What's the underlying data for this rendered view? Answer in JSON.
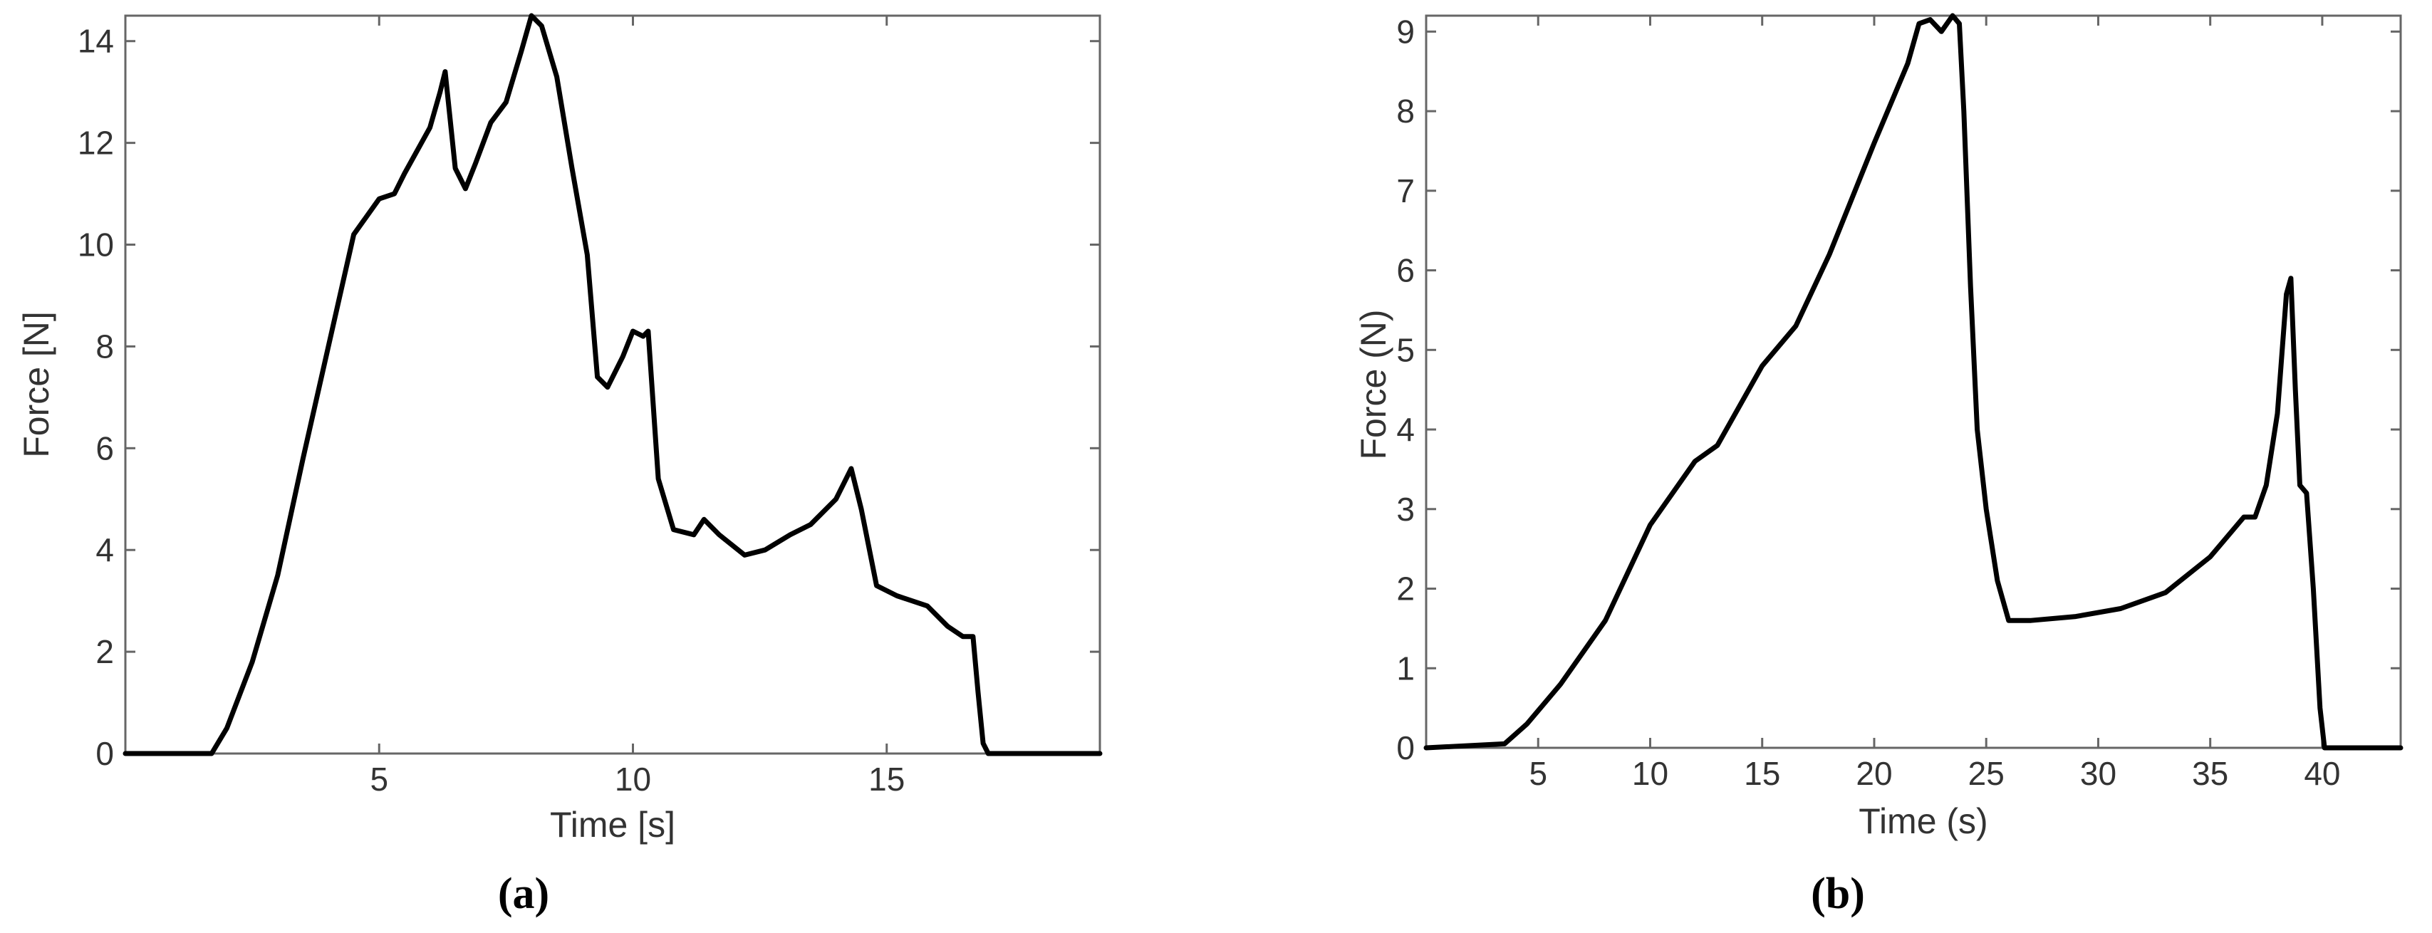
{
  "chart_data": [
    {
      "panel_label": "(a)",
      "type": "line",
      "xlabel": "Time [s]",
      "ylabel": "Force [N]",
      "xlim": [
        0,
        19.2
      ],
      "ylim": [
        0,
        14.5
      ],
      "xticks": [
        5,
        10,
        15
      ],
      "yticks": [
        0,
        2,
        4,
        6,
        8,
        10,
        12,
        14
      ],
      "grid": false,
      "series": [
        {
          "color": "#000000",
          "x": [
            0,
            1.7,
            2.0,
            2.5,
            3.0,
            3.5,
            4.0,
            4.5,
            5.0,
            5.3,
            5.5,
            6.0,
            6.2,
            6.3,
            6.5,
            6.7,
            6.9,
            7.2,
            7.5,
            7.8,
            8.0,
            8.2,
            8.5,
            8.8,
            9.1,
            9.3,
            9.5,
            9.8,
            10.0,
            10.2,
            10.3,
            10.5,
            10.8,
            11.2,
            11.4,
            11.7,
            12.2,
            12.6,
            13.1,
            13.5,
            14.0,
            14.3,
            14.5,
            14.8,
            15.2,
            15.8,
            16.2,
            16.5,
            16.7,
            16.8,
            16.9,
            17.0,
            19.2
          ],
          "values": [
            0,
            0,
            0.5,
            1.8,
            3.5,
            5.8,
            8.0,
            10.2,
            10.9,
            11.0,
            11.4,
            12.3,
            13.0,
            13.4,
            11.5,
            11.1,
            11.6,
            12.4,
            12.8,
            13.8,
            14.5,
            14.3,
            13.3,
            11.5,
            9.8,
            7.4,
            7.2,
            7.8,
            8.3,
            8.2,
            8.3,
            5.4,
            4.4,
            4.3,
            4.6,
            4.3,
            3.9,
            4.0,
            4.3,
            4.5,
            5.0,
            5.6,
            4.8,
            3.3,
            3.1,
            2.9,
            2.5,
            2.3,
            2.3,
            1.2,
            0.2,
            0,
            0
          ]
        }
      ]
    },
    {
      "panel_label": "(b)",
      "type": "line",
      "xlabel": "Time (s)",
      "ylabel": "Force (N)",
      "xlim": [
        0,
        43.5
      ],
      "ylim": [
        0,
        9.2
      ],
      "xticks": [
        5,
        10,
        15,
        20,
        25,
        30,
        35,
        40
      ],
      "yticks": [
        0,
        1,
        2,
        3,
        4,
        5,
        6,
        7,
        8,
        9
      ],
      "grid": false,
      "series": [
        {
          "color": "#000000",
          "x": [
            0,
            3.5,
            4.5,
            6.0,
            8.0,
            10.0,
            12.0,
            13.0,
            15.0,
            16.5,
            18.0,
            20.0,
            21.5,
            22.0,
            22.5,
            23.0,
            23.5,
            23.8,
            24.0,
            24.3,
            24.6,
            25.0,
            25.5,
            26.0,
            27.0,
            29.0,
            31.0,
            33.0,
            35.0,
            36.5,
            37.0,
            37.5,
            38.0,
            38.4,
            38.6,
            38.8,
            39.0,
            39.3,
            39.6,
            39.9,
            40.1,
            43.5
          ],
          "values": [
            0,
            0.05,
            0.3,
            0.8,
            1.6,
            2.8,
            3.6,
            3.8,
            4.8,
            5.3,
            6.2,
            7.6,
            8.6,
            9.1,
            9.15,
            9.0,
            9.2,
            9.1,
            8.0,
            5.8,
            4.0,
            3.0,
            2.1,
            1.6,
            1.6,
            1.65,
            1.75,
            1.95,
            2.4,
            2.9,
            2.9,
            3.3,
            4.2,
            5.7,
            5.9,
            4.5,
            3.3,
            3.2,
            2.0,
            0.5,
            0,
            0
          ]
        }
      ]
    }
  ]
}
